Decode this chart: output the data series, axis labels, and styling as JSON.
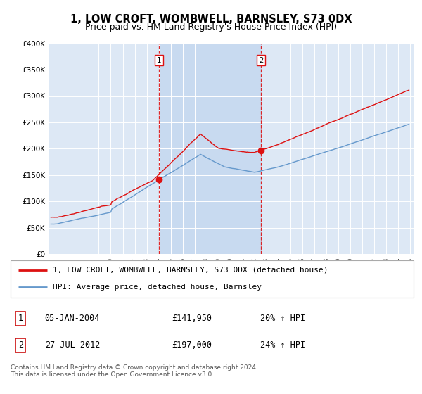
{
  "title": "1, LOW CROFT, WOMBWELL, BARNSLEY, S73 0DX",
  "subtitle": "Price paid vs. HM Land Registry's House Price Index (HPI)",
  "ylim": [
    0,
    400000
  ],
  "yticks": [
    0,
    50000,
    100000,
    150000,
    200000,
    250000,
    300000,
    350000,
    400000
  ],
  "ytick_labels": [
    "£0",
    "£50K",
    "£100K",
    "£150K",
    "£200K",
    "£250K",
    "£300K",
    "£350K",
    "£400K"
  ],
  "background_color": "#ffffff",
  "plot_bg_color": "#dde8f5",
  "shade_color": "#c8daf0",
  "grid_color": "#ffffff",
  "hpi_line_color": "#6699cc",
  "price_line_color": "#dd1111",
  "sale1_date": 2004.03,
  "sale1_price": 141950,
  "sale2_date": 2012.56,
  "sale2_price": 197000,
  "legend_line1": "1, LOW CROFT, WOMBWELL, BARNSLEY, S73 0DX (detached house)",
  "legend_line2": "HPI: Average price, detached house, Barnsley",
  "table_row1": [
    "1",
    "05-JAN-2004",
    "£141,950",
    "20% ↑ HPI"
  ],
  "table_row2": [
    "2",
    "27-JUL-2012",
    "£197,000",
    "24% ↑ HPI"
  ],
  "footnote": "Contains HM Land Registry data © Crown copyright and database right 2024.\nThis data is licensed under the Open Government Licence v3.0.",
  "title_fontsize": 10.5,
  "subtitle_fontsize": 9,
  "tick_fontsize": 7.5,
  "legend_fontsize": 8,
  "table_fontsize": 8.5,
  "footnote_fontsize": 6.5
}
